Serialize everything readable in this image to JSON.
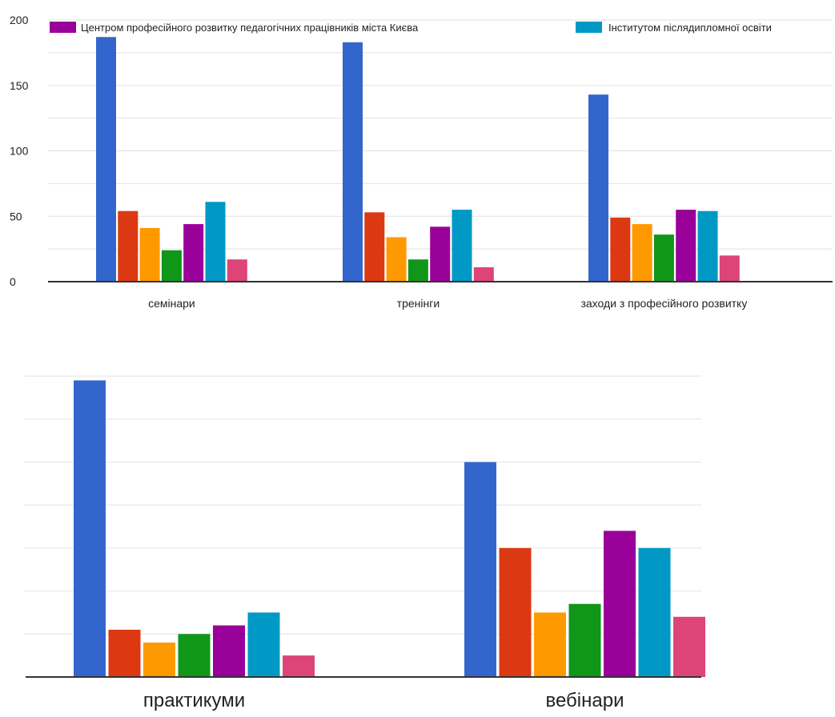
{
  "colors": {
    "blue": "#3366cc",
    "red": "#dc3912",
    "orange": "#ff9900",
    "green": "#109618",
    "purple": "#990099",
    "cyan": "#0099c6",
    "pink": "#dd4477",
    "grid": "#e2e2e2",
    "axis": "#333333"
  },
  "chart_data": [
    {
      "type": "bar",
      "title": "",
      "categories": [
        "семінари",
        "тренінги",
        "заходи з професійного розвитку"
      ],
      "ylim": [
        0,
        200
      ],
      "yticks": [
        0,
        50,
        100,
        150,
        200
      ],
      "grid": true,
      "legend_position": "top",
      "legend": [
        {
          "label": "Центром професійного розвитку педагогічних працівників міста Києва",
          "color": "#990099"
        },
        {
          "label": "Інститутом післядипломної освіти",
          "color": "#0099c6"
        }
      ],
      "series": [
        {
          "color": "#3366cc",
          "values": [
            187,
            183,
            143
          ]
        },
        {
          "color": "#dc3912",
          "values": [
            54,
            53,
            49
          ]
        },
        {
          "color": "#ff9900",
          "values": [
            41,
            34,
            44
          ]
        },
        {
          "color": "#109618",
          "values": [
            24,
            17,
            36
          ]
        },
        {
          "name": "Центром професійного розвитку педагогічних працівників міста Києва",
          "color": "#990099",
          "values": [
            44,
            42,
            55
          ]
        },
        {
          "name": "Інститутом післядипломної освіти",
          "color": "#0099c6",
          "values": [
            61,
            55,
            54
          ]
        },
        {
          "color": "#dd4477",
          "values": [
            17,
            11,
            20
          ]
        }
      ]
    },
    {
      "type": "bar",
      "title": "",
      "categories": [
        "практикуми",
        "вебінари"
      ],
      "ylim": [
        0,
        70
      ],
      "grid": true,
      "series": [
        {
          "color": "#3366cc",
          "values": [
            69,
            50
          ]
        },
        {
          "color": "#dc3912",
          "values": [
            11,
            30
          ]
        },
        {
          "color": "#ff9900",
          "values": [
            8,
            15
          ]
        },
        {
          "color": "#109618",
          "values": [
            10,
            17
          ]
        },
        {
          "color": "#990099",
          "values": [
            12,
            34
          ]
        },
        {
          "color": "#0099c6",
          "values": [
            15,
            30
          ]
        },
        {
          "color": "#dd4477",
          "values": [
            5,
            14
          ]
        }
      ]
    }
  ]
}
